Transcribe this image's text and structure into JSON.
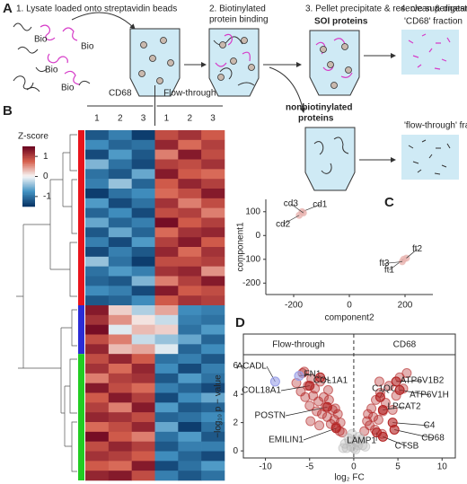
{
  "panel_labels": [
    "A",
    "B",
    "C",
    "D"
  ],
  "panel_a": {
    "step1": "1. Lysate loaded onto streptavidin beads",
    "bio_tags": [
      "Bio",
      "Bio",
      "Bio",
      "Bio"
    ],
    "step2": [
      "2. Biotinylated",
      "protein binding"
    ],
    "step3": "3. Pellet precipitate & reserve supernatant",
    "soi": "SOI proteins",
    "step4": "4. clean & digest",
    "cd68_fraction": "'CD68' fraction",
    "nonbiotinylated": [
      "nonbiotinylated",
      "proteins"
    ],
    "ft_fraction": "'flow-through' fraction"
  },
  "chart_data": [
    {
      "type": "heatmap",
      "column_groups": [
        {
          "name": "CD68",
          "columns": [
            "1",
            "2",
            "3"
          ]
        },
        {
          "name": "Flow-through",
          "columns": [
            "1",
            "2",
            "3"
          ]
        }
      ],
      "row_clusters": [
        {
          "color": "#e8141c",
          "size": 18
        },
        {
          "color": "#2b2bd6",
          "size": 5
        },
        {
          "color": "#22cc22",
          "size": 13
        }
      ],
      "colorbar": {
        "title": "Z-score",
        "ticks": [
          1,
          0,
          -1
        ],
        "lim": [
          -1.5,
          1.5
        ]
      },
      "values": [
        [
          -1.2,
          -0.9,
          -1.4,
          0.9,
          1.1,
          0.8
        ],
        [
          -0.8,
          -1.1,
          -1.0,
          1.2,
          0.7,
          1.0
        ],
        [
          -1.3,
          -0.7,
          -1.2,
          0.6,
          1.3,
          0.9
        ],
        [
          -0.5,
          -1.0,
          -1.3,
          1.0,
          0.9,
          1.1
        ],
        [
          -1.0,
          -1.2,
          -0.6,
          1.3,
          0.8,
          0.7
        ],
        [
          -0.9,
          -0.4,
          -1.1,
          0.8,
          1.2,
          1.0
        ],
        [
          -1.4,
          -1.0,
          -0.8,
          0.7,
          0.9,
          1.3
        ],
        [
          -0.7,
          -1.3,
          -1.0,
          1.1,
          0.6,
          0.9
        ],
        [
          -1.1,
          -0.8,
          -1.3,
          0.9,
          1.0,
          0.6
        ],
        [
          -0.6,
          -1.1,
          -0.9,
          1.4,
          0.8,
          1.0
        ],
        [
          -1.2,
          -0.6,
          -1.1,
          0.7,
          1.1,
          1.2
        ],
        [
          -0.9,
          -1.3,
          -0.7,
          1.0,
          1.3,
          0.8
        ],
        [
          -1.3,
          -0.9,
          -1.2,
          1.2,
          0.7,
          1.1
        ],
        [
          -0.4,
          -1.0,
          -1.4,
          0.9,
          0.9,
          1.0
        ],
        [
          -1.0,
          -0.7,
          -0.9,
          1.1,
          1.2,
          0.5
        ],
        [
          -1.1,
          -1.2,
          -0.5,
          0.6,
          1.0,
          1.3
        ],
        [
          -0.8,
          -0.9,
          -1.3,
          1.3,
          0.8,
          0.9
        ],
        [
          -1.2,
          -1.1,
          -0.8,
          0.8,
          1.1,
          1.0
        ],
        [
          1.3,
          0.2,
          -0.3,
          0.4,
          -0.8,
          -0.9
        ],
        [
          1.1,
          0.5,
          0.1,
          -0.2,
          -0.9,
          -1.0
        ],
        [
          1.4,
          -0.1,
          0.3,
          0.2,
          -1.0,
          -0.7
        ],
        [
          0.9,
          0.6,
          -0.2,
          -0.4,
          -0.6,
          -1.1
        ],
        [
          1.2,
          0.3,
          0.4,
          -0.1,
          -1.1,
          -0.8
        ],
        [
          0.9,
          1.2,
          0.8,
          -1.0,
          -0.9,
          -1.2
        ],
        [
          1.1,
          0.7,
          1.2,
          -0.8,
          -1.3,
          -0.9
        ],
        [
          0.6,
          1.0,
          1.1,
          -1.2,
          -0.7,
          -1.0
        ],
        [
          1.3,
          0.9,
          0.7,
          -0.9,
          -1.1,
          -1.3
        ],
        [
          0.8,
          1.3,
          1.0,
          -1.3,
          -0.8,
          -0.6
        ],
        [
          1.0,
          0.6,
          1.3,
          -0.7,
          -1.2,
          -1.1
        ],
        [
          1.2,
          1.1,
          0.9,
          -1.1,
          -1.0,
          -0.8
        ],
        [
          0.7,
          0.9,
          1.2,
          -0.6,
          -1.4,
          -1.0
        ],
        [
          1.4,
          0.8,
          0.6,
          -1.0,
          -0.7,
          -1.2
        ],
        [
          0.9,
          1.2,
          1.0,
          -1.2,
          -0.9,
          -0.9
        ],
        [
          1.1,
          1.0,
          0.8,
          -0.8,
          -1.1,
          -1.3
        ],
        [
          0.8,
          0.7,
          1.3,
          -1.3,
          -1.0,
          -0.7
        ],
        [
          1.2,
          1.3,
          0.9,
          -0.9,
          -1.2,
          -1.0
        ]
      ]
    },
    {
      "type": "scatter",
      "x_label": "component2",
      "y_label": "component1",
      "xlim": [
        -300,
        300
      ],
      "ylim": [
        -248,
        152
      ],
      "xticks": [
        -200,
        0,
        200
      ],
      "yticks": [
        -200,
        -100,
        0,
        100
      ],
      "series": [
        {
          "color": "#e8b4b0",
          "labels": [
            "cd1",
            "cd2",
            "cd3",
            "ft1",
            "ft2",
            "ft3"
          ],
          "x": [
            -170,
            -180,
            -165,
            195,
            205,
            190
          ],
          "values": [
            100,
            85,
            95,
            -100,
            -95,
            -110
          ]
        }
      ]
    },
    {
      "type": "scatter",
      "x_label": "log₂ FC",
      "y_label": "−log₁₀ p − value",
      "strips": [
        "Flow-through",
        "CD68"
      ],
      "xlim": [
        -12.5,
        11.5
      ],
      "ylim": [
        -0.5,
        6.8
      ],
      "xticks": [
        -10,
        -5,
        0,
        5,
        10
      ],
      "yticks": [
        0,
        2,
        4,
        6
      ],
      "series": [
        {
          "color": "#b22222",
          "x": [
            -6.5,
            -6,
            -5.8,
            -5.5,
            -5.2,
            -5,
            -4.8,
            -4.6,
            -4.4,
            -4.2,
            -4,
            -3.8,
            -3.6,
            -3.4,
            -3.2,
            -3,
            -2.8,
            -2.6,
            -2.4,
            -2.2,
            -2,
            -1.8,
            -1.6,
            -1.5,
            -1.3,
            -5.6,
            -4.9,
            -3.9,
            -2.9,
            -2.1,
            1.2,
            1.5,
            1.8,
            2,
            2.2,
            2.5,
            2.8,
            3,
            3.3,
            3.6,
            4,
            4.4,
            4.8,
            5.2,
            5.6,
            6,
            2.4,
            3.2,
            1.6,
            2.9
          ],
          "values": [
            4.8,
            4.2,
            5.5,
            3.8,
            4.6,
            3.2,
            5.1,
            3.9,
            4.4,
            2.8,
            3.5,
            4.9,
            2.6,
            3.8,
            3.1,
            2.4,
            3.6,
            1.9,
            2.9,
            2.2,
            1.7,
            2.6,
            1.4,
            2.0,
            1.3,
            5.6,
            2.1,
            1.8,
            4.3,
            3.0,
            1.4,
            2.1,
            1.8,
            3.0,
            2.4,
            3.6,
            2.2,
            4.1,
            2.8,
            3.4,
            4.6,
            2.9,
            3.9,
            5.2,
            4.4,
            5.5,
            1.5,
            1.2,
            2.6,
            4.9
          ]
        },
        {
          "color": "#bbbbbb",
          "x": [
            -1,
            -0.6,
            -0.3,
            0,
            0.3,
            0.6,
            1,
            -0.8,
            0.8,
            -0.2,
            0.2,
            1.3,
            -1.2,
            0.5,
            -0.5
          ],
          "values": [
            0.5,
            0.9,
            0.3,
            0.2,
            0.6,
            1.0,
            0.4,
            0.2,
            0.8,
            1.2,
            0.1,
            0.3,
            0.2,
            0.4,
            0.7
          ]
        }
      ],
      "annotations": [
        {
          "label": "ACADL",
          "x": -8.9,
          "y": 4.9,
          "color": "#9aa0e8"
        },
        {
          "label": "FN1",
          "x": -6.2,
          "y": 5.3,
          "color": "#9aa0e8"
        },
        {
          "label": "COL18A1",
          "x": -5.0,
          "y": 4.6,
          "color": "#b22222"
        },
        {
          "label": "COL1A1",
          "x": -3.8,
          "y": 5.2,
          "color": "#b22222"
        },
        {
          "label": "POSTN",
          "x": -3.0,
          "y": 3.1,
          "color": "#b22222"
        },
        {
          "label": "EMILIN1",
          "x": -2.0,
          "y": 1.6,
          "color": "#b22222"
        },
        {
          "label": "C1QC",
          "x": 3.0,
          "y": 3.8,
          "color": "#b22222"
        },
        {
          "label": "ATP6V1B2",
          "x": 4.8,
          "y": 4.9,
          "color": "#b22222"
        },
        {
          "label": "ATP6V1H",
          "x": 5.2,
          "y": 4.3,
          "color": "#b22222"
        },
        {
          "label": "LPCAT2",
          "x": 3.3,
          "y": 2.9,
          "color": "#b22222"
        },
        {
          "label": "C4",
          "x": 4.4,
          "y": 2.0,
          "color": "#b22222"
        },
        {
          "label": "CD68",
          "x": 4.6,
          "y": 1.5,
          "color": "#b22222"
        },
        {
          "label": "CTSB",
          "x": 3.3,
          "y": 1.0,
          "color": "#b22222"
        },
        {
          "label": "LAMP1",
          "x": 2.6,
          "y": 1.3,
          "color": "#b22222"
        }
      ]
    }
  ]
}
